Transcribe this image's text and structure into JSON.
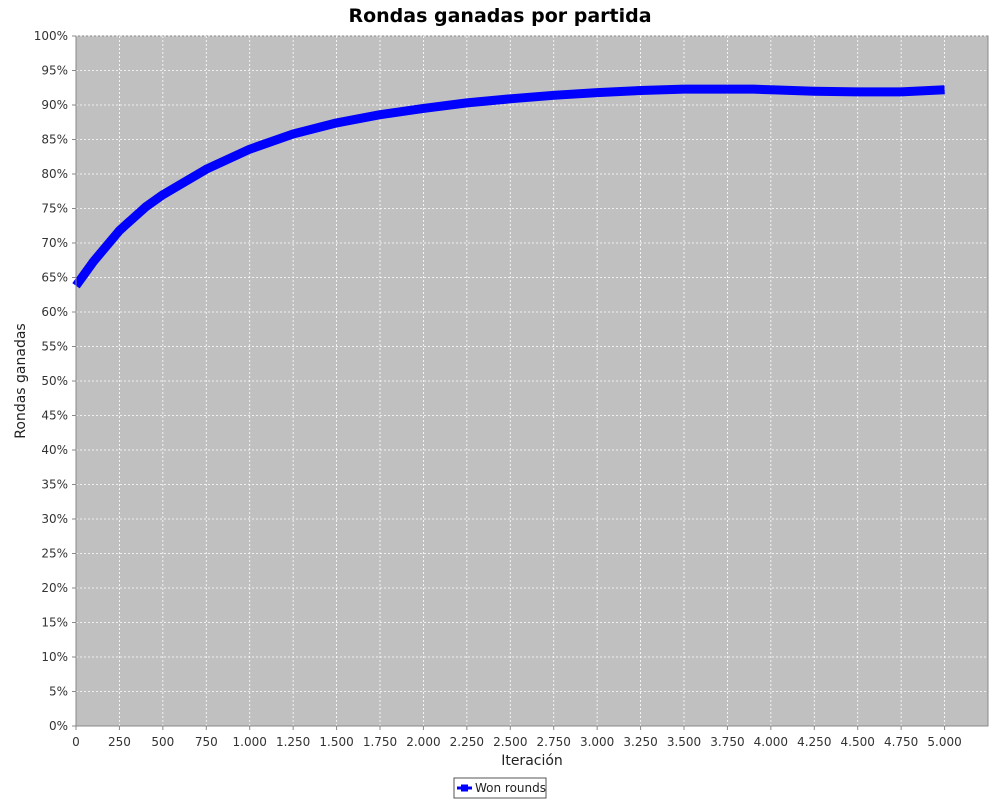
{
  "chart_data": {
    "type": "line",
    "title": "Rondas ganadas por partida",
    "xlabel": "Iteración",
    "ylabel": "Rondas ganadas",
    "xlim": [
      0,
      5250
    ],
    "ylim": [
      0,
      100
    ],
    "x_ticks": [
      0,
      250,
      500,
      750,
      1000,
      1250,
      1500,
      1750,
      2000,
      2250,
      2500,
      2750,
      3000,
      3250,
      3500,
      3750,
      4000,
      4250,
      4500,
      4750,
      5000
    ],
    "x_tick_labels": [
      "0",
      "250",
      "500",
      "750",
      "1.000",
      "1.250",
      "1.500",
      "1.750",
      "2.000",
      "2.250",
      "2.500",
      "2.750",
      "3.000",
      "3.250",
      "3.500",
      "3.750",
      "4.000",
      "4.250",
      "4.500",
      "4.750",
      "5.000"
    ],
    "y_ticks": [
      0,
      5,
      10,
      15,
      20,
      25,
      30,
      35,
      40,
      45,
      50,
      55,
      60,
      65,
      70,
      75,
      80,
      85,
      90,
      95,
      100
    ],
    "y_tick_labels": [
      "0%",
      "5%",
      "10%",
      "15%",
      "20%",
      "25%",
      "30%",
      "35%",
      "40%",
      "45%",
      "50%",
      "55%",
      "60%",
      "65%",
      "70%",
      "75%",
      "80%",
      "85%",
      "90%",
      "95%",
      "100%"
    ],
    "grid": true,
    "legend_position": "bottom-center",
    "series": [
      {
        "name": "Won rounds",
        "color": "#0000ff",
        "x": [
          0,
          100,
          250,
          400,
          500,
          750,
          1000,
          1250,
          1500,
          1750,
          2000,
          2250,
          2500,
          2750,
          3000,
          3250,
          3500,
          3750,
          3900,
          4000,
          4250,
          4500,
          4750,
          5000
        ],
        "y": [
          63.8,
          67.3,
          71.8,
          75.2,
          77.0,
          80.7,
          83.6,
          85.8,
          87.4,
          88.6,
          89.5,
          90.3,
          90.9,
          91.4,
          91.8,
          92.1,
          92.3,
          92.3,
          92.3,
          92.2,
          92.0,
          91.9,
          91.9,
          92.2
        ]
      }
    ]
  },
  "colors": {
    "plot_background": "#c0c0c0",
    "gridline": "#ffffff",
    "series": "#0000ff"
  }
}
